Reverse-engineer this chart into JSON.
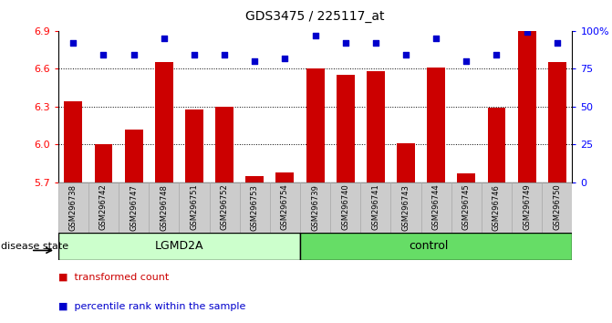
{
  "title": "GDS3475 / 225117_at",
  "samples": [
    "GSM296738",
    "GSM296742",
    "GSM296747",
    "GSM296748",
    "GSM296751",
    "GSM296752",
    "GSM296753",
    "GSM296754",
    "GSM296739",
    "GSM296740",
    "GSM296741",
    "GSM296743",
    "GSM296744",
    "GSM296745",
    "GSM296746",
    "GSM296749",
    "GSM296750"
  ],
  "bar_values": [
    6.34,
    6.0,
    6.12,
    6.65,
    6.28,
    6.3,
    5.75,
    5.78,
    6.6,
    6.55,
    6.58,
    6.01,
    6.61,
    5.77,
    6.29,
    6.9,
    6.65
  ],
  "pct_values": [
    92,
    84,
    84,
    95,
    84,
    84,
    80,
    82,
    97,
    92,
    92,
    84,
    95,
    80,
    84,
    99,
    92
  ],
  "groups": [
    "LGMD2A",
    "LGMD2A",
    "LGMD2A",
    "LGMD2A",
    "LGMD2A",
    "LGMD2A",
    "LGMD2A",
    "LGMD2A",
    "control",
    "control",
    "control",
    "control",
    "control",
    "control",
    "control",
    "control",
    "control"
  ],
  "ylim_left": [
    5.7,
    6.9
  ],
  "ylim_right": [
    0,
    100
  ],
  "yticks_left": [
    5.7,
    6.0,
    6.3,
    6.6,
    6.9
  ],
  "yticks_right": [
    0,
    25,
    50,
    75,
    100
  ],
  "bar_color": "#cc0000",
  "dot_color": "#0000cc",
  "lgmd2a_color": "#ccffcc",
  "control_color": "#66dd66",
  "tick_bg_color": "#cccccc",
  "legend_items": [
    "transformed count",
    "percentile rank within the sample"
  ],
  "disease_state_label": "disease state"
}
